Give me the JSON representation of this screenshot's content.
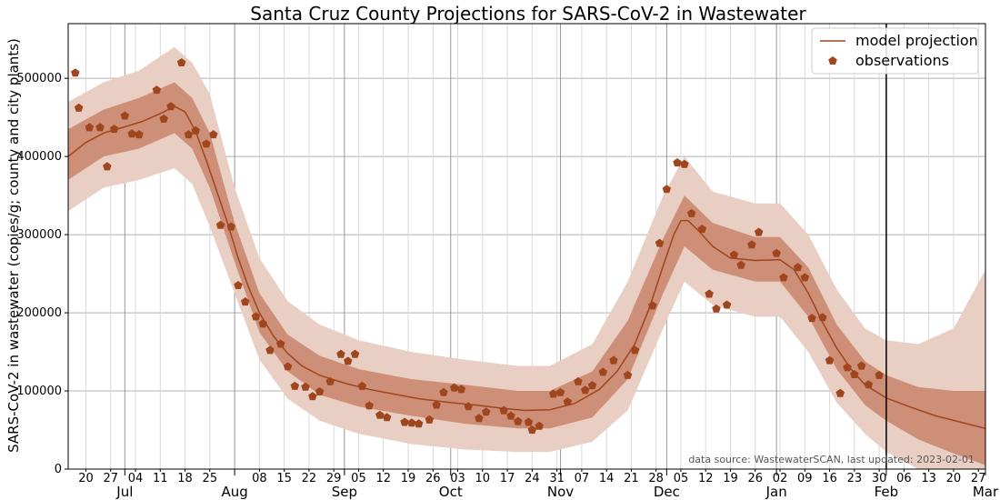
{
  "chart_data": {
    "type": "line",
    "title": "Santa Cruz County Projections for SARS-CoV-2 in Wastewater",
    "ylabel": "SARS-CoV-2 in wastewater (copies/g; county and city plants)",
    "xlabel": "",
    "ylim": [
      0,
      570000
    ],
    "xlim": [
      "2022-06-15",
      "2023-03-01"
    ],
    "grid": true,
    "legend_position": "top-right",
    "source_note": "data source: WastewaterSCAN, last updated: 2023-02-01",
    "last_updated_line": "2023-02-01",
    "colors": {
      "line": "#a0461e",
      "marker": "#a0461e",
      "band_inner": "#c8846a",
      "band_outer": "#e9cfc3",
      "grid": "#b0b0b0"
    },
    "y_ticks": [
      {
        "value": 0,
        "label": "0"
      },
      {
        "value": 100000,
        "label": "100000"
      },
      {
        "value": 200000,
        "label": "200000"
      },
      {
        "value": 300000,
        "label": "300000"
      },
      {
        "value": 400000,
        "label": "400000"
      },
      {
        "value": 500000,
        "label": "500000"
      }
    ],
    "month_ticks": [
      {
        "date": "2022-07-01",
        "label": "Jul"
      },
      {
        "date": "2022-08-01",
        "label": "Aug"
      },
      {
        "date": "2022-09-01",
        "label": "Sep"
      },
      {
        "date": "2022-10-01",
        "label": "Oct"
      },
      {
        "date": "2022-11-01",
        "label": "Nov"
      },
      {
        "date": "2022-12-01",
        "label": "Dec"
      },
      {
        "date": "2023-01-01",
        "label": "Jan"
      },
      {
        "date": "2023-02-01",
        "label": "Feb"
      },
      {
        "date": "2023-03-01",
        "label": "Mar"
      }
    ],
    "week_ticks": [
      {
        "date": "2022-06-20",
        "label": "20"
      },
      {
        "date": "2022-06-27",
        "label": "27"
      },
      {
        "date": "2022-07-04",
        "label": "04"
      },
      {
        "date": "2022-07-11",
        "label": "11"
      },
      {
        "date": "2022-07-18",
        "label": "18"
      },
      {
        "date": "2022-07-25",
        "label": "25"
      },
      {
        "date": "2022-08-08",
        "label": "08"
      },
      {
        "date": "2022-08-15",
        "label": "15"
      },
      {
        "date": "2022-08-22",
        "label": "22"
      },
      {
        "date": "2022-08-29",
        "label": "29"
      },
      {
        "date": "2022-09-05",
        "label": "05"
      },
      {
        "date": "2022-09-12",
        "label": "12"
      },
      {
        "date": "2022-09-19",
        "label": "19"
      },
      {
        "date": "2022-09-26",
        "label": "26"
      },
      {
        "date": "2022-10-03",
        "label": "03"
      },
      {
        "date": "2022-10-10",
        "label": "10"
      },
      {
        "date": "2022-10-17",
        "label": "17"
      },
      {
        "date": "2022-10-24",
        "label": "24"
      },
      {
        "date": "2022-10-31",
        "label": "31"
      },
      {
        "date": "2022-11-07",
        "label": "07"
      },
      {
        "date": "2022-11-14",
        "label": "14"
      },
      {
        "date": "2022-11-21",
        "label": "21"
      },
      {
        "date": "2022-11-28",
        "label": "28"
      },
      {
        "date": "2022-12-05",
        "label": "05"
      },
      {
        "date": "2022-12-12",
        "label": "12"
      },
      {
        "date": "2022-12-19",
        "label": "19"
      },
      {
        "date": "2022-12-26",
        "label": "26"
      },
      {
        "date": "2023-01-02",
        "label": "02"
      },
      {
        "date": "2023-01-09",
        "label": "09"
      },
      {
        "date": "2023-01-16",
        "label": "16"
      },
      {
        "date": "2023-01-23",
        "label": "23"
      },
      {
        "date": "2023-01-30",
        "label": "30"
      },
      {
        "date": "2023-02-06",
        "label": "06"
      },
      {
        "date": "2023-02-13",
        "label": "13"
      },
      {
        "date": "2023-02-20",
        "label": "20"
      },
      {
        "date": "2023-02-27",
        "label": "27"
      }
    ],
    "series": [
      {
        "name": "model projection",
        "style": "line",
        "points": [
          [
            "2022-06-15",
            400000
          ],
          [
            "2022-06-20",
            418000
          ],
          [
            "2022-06-25",
            430000
          ],
          [
            "2022-07-01",
            438000
          ],
          [
            "2022-07-06",
            445000
          ],
          [
            "2022-07-11",
            455000
          ],
          [
            "2022-07-15",
            464000
          ],
          [
            "2022-07-18",
            457000
          ],
          [
            "2022-07-21",
            432000
          ],
          [
            "2022-07-24",
            395000
          ],
          [
            "2022-07-27",
            355000
          ],
          [
            "2022-07-30",
            315000
          ],
          [
            "2022-08-02",
            270000
          ],
          [
            "2022-08-05",
            232000
          ],
          [
            "2022-08-08",
            200000
          ],
          [
            "2022-08-12",
            170000
          ],
          [
            "2022-08-16",
            148000
          ],
          [
            "2022-08-20",
            132000
          ],
          [
            "2022-08-25",
            120000
          ],
          [
            "2022-09-01",
            110000
          ],
          [
            "2022-09-08",
            102000
          ],
          [
            "2022-09-15",
            96000
          ],
          [
            "2022-09-22",
            90000
          ],
          [
            "2022-10-01",
            85000
          ],
          [
            "2022-10-08",
            82000
          ],
          [
            "2022-10-15",
            78000
          ],
          [
            "2022-10-22",
            75000
          ],
          [
            "2022-10-29",
            76000
          ],
          [
            "2022-11-05",
            84000
          ],
          [
            "2022-11-12",
            102000
          ],
          [
            "2022-11-17",
            125000
          ],
          [
            "2022-11-22",
            160000
          ],
          [
            "2022-11-26",
            205000
          ],
          [
            "2022-11-30",
            260000
          ],
          [
            "2022-12-03",
            300000
          ],
          [
            "2022-12-05",
            318000
          ],
          [
            "2022-12-07",
            318000
          ],
          [
            "2022-12-10",
            305000
          ],
          [
            "2022-12-14",
            285000
          ],
          [
            "2022-12-19",
            270000
          ],
          [
            "2022-12-26",
            267000
          ],
          [
            "2023-01-02",
            268000
          ],
          [
            "2023-01-06",
            255000
          ],
          [
            "2023-01-10",
            225000
          ],
          [
            "2023-01-14",
            188000
          ],
          [
            "2023-01-18",
            155000
          ],
          [
            "2023-01-22",
            128000
          ],
          [
            "2023-01-26",
            108000
          ],
          [
            "2023-02-01",
            91000
          ],
          [
            "2023-02-08",
            79000
          ],
          [
            "2023-02-15",
            68000
          ],
          [
            "2023-02-22",
            60000
          ],
          [
            "2023-03-01",
            52000
          ]
        ],
        "inner_band": [
          [
            "2022-06-15",
            370000,
            435000
          ],
          [
            "2022-06-25",
            400000,
            460000
          ],
          [
            "2022-07-05",
            410000,
            475000
          ],
          [
            "2022-07-15",
            430000,
            495000
          ],
          [
            "2022-07-20",
            410000,
            475000
          ],
          [
            "2022-07-25",
            360000,
            430000
          ],
          [
            "2022-08-01",
            265000,
            315000
          ],
          [
            "2022-08-08",
            175000,
            225000
          ],
          [
            "2022-08-16",
            125000,
            172000
          ],
          [
            "2022-08-25",
            95000,
            145000
          ],
          [
            "2022-09-05",
            80000,
            128000
          ],
          [
            "2022-09-20",
            68000,
            115000
          ],
          [
            "2022-10-05",
            58000,
            108000
          ],
          [
            "2022-10-20",
            52000,
            100000
          ],
          [
            "2022-10-29",
            52000,
            100000
          ],
          [
            "2022-11-10",
            66000,
            125000
          ],
          [
            "2022-11-20",
            115000,
            190000
          ],
          [
            "2022-11-30",
            225000,
            295000
          ],
          [
            "2022-12-06",
            285000,
            350000
          ],
          [
            "2022-12-14",
            255000,
            315000
          ],
          [
            "2022-12-26",
            240000,
            297000
          ],
          [
            "2023-01-02",
            240000,
            297000
          ],
          [
            "2023-01-10",
            195000,
            258000
          ],
          [
            "2023-01-18",
            128000,
            185000
          ],
          [
            "2023-01-26",
            82000,
            138000
          ],
          [
            "2023-02-01",
            62000,
            120000
          ],
          [
            "2023-02-10",
            38000,
            105000
          ],
          [
            "2023-02-20",
            20000,
            100000
          ],
          [
            "2023-03-01",
            5000,
            100000
          ]
        ],
        "outer_band": [
          [
            "2022-06-15",
            330000,
            470000
          ],
          [
            "2022-06-25",
            360000,
            495000
          ],
          [
            "2022-07-05",
            370000,
            510000
          ],
          [
            "2022-07-15",
            385000,
            540000
          ],
          [
            "2022-07-20",
            365000,
            520000
          ],
          [
            "2022-07-25",
            310000,
            480000
          ],
          [
            "2022-08-01",
            225000,
            360000
          ],
          [
            "2022-08-08",
            140000,
            270000
          ],
          [
            "2022-08-16",
            90000,
            215000
          ],
          [
            "2022-08-25",
            62000,
            185000
          ],
          [
            "2022-09-05",
            45000,
            165000
          ],
          [
            "2022-09-20",
            32000,
            150000
          ],
          [
            "2022-10-05",
            25000,
            140000
          ],
          [
            "2022-10-20",
            22000,
            132000
          ],
          [
            "2022-10-29",
            22000,
            132000
          ],
          [
            "2022-11-10",
            35000,
            160000
          ],
          [
            "2022-11-20",
            75000,
            240000
          ],
          [
            "2022-11-30",
            180000,
            350000
          ],
          [
            "2022-12-06",
            240000,
            400000
          ],
          [
            "2022-12-14",
            210000,
            355000
          ],
          [
            "2022-12-26",
            195000,
            340000
          ],
          [
            "2023-01-02",
            195000,
            340000
          ],
          [
            "2023-01-10",
            150000,
            300000
          ],
          [
            "2023-01-18",
            85000,
            230000
          ],
          [
            "2023-01-26",
            45000,
            180000
          ],
          [
            "2023-02-01",
            22000,
            165000
          ],
          [
            "2023-02-10",
            0,
            160000
          ],
          [
            "2023-02-20",
            0,
            180000
          ],
          [
            "2023-03-01",
            0,
            255000
          ]
        ]
      },
      {
        "name": "observations",
        "style": "scatter",
        "marker": "pentagon",
        "points": [
          [
            "2022-06-17",
            507000
          ],
          [
            "2022-06-18",
            462000
          ],
          [
            "2022-06-21",
            437000
          ],
          [
            "2022-06-24",
            437000
          ],
          [
            "2022-06-26",
            387000
          ],
          [
            "2022-06-28",
            435000
          ],
          [
            "2022-07-01",
            452000
          ],
          [
            "2022-07-03",
            429000
          ],
          [
            "2022-07-05",
            428000
          ],
          [
            "2022-07-10",
            485000
          ],
          [
            "2022-07-12",
            448000
          ],
          [
            "2022-07-14",
            464000
          ],
          [
            "2022-07-17",
            520000
          ],
          [
            "2022-07-19",
            428000
          ],
          [
            "2022-07-21",
            433000
          ],
          [
            "2022-07-24",
            416000
          ],
          [
            "2022-07-26",
            428000
          ],
          [
            "2022-07-28",
            312000
          ],
          [
            "2022-07-31",
            310000
          ],
          [
            "2022-08-02",
            235000
          ],
          [
            "2022-08-04",
            214000
          ],
          [
            "2022-08-07",
            195000
          ],
          [
            "2022-08-09",
            186000
          ],
          [
            "2022-08-11",
            152000
          ],
          [
            "2022-08-14",
            160000
          ],
          [
            "2022-08-16",
            131000
          ],
          [
            "2022-08-18",
            106000
          ],
          [
            "2022-08-21",
            105000
          ],
          [
            "2022-08-23",
            93000
          ],
          [
            "2022-08-25",
            99000
          ],
          [
            "2022-08-28",
            112000
          ],
          [
            "2022-08-31",
            147000
          ],
          [
            "2022-09-02",
            138000
          ],
          [
            "2022-09-04",
            147000
          ],
          [
            "2022-09-06",
            106000
          ],
          [
            "2022-09-08",
            81000
          ],
          [
            "2022-09-11",
            69000
          ],
          [
            "2022-09-13",
            66000
          ],
          [
            "2022-09-18",
            60000
          ],
          [
            "2022-09-20",
            59000
          ],
          [
            "2022-09-22",
            58000
          ],
          [
            "2022-09-25",
            63000
          ],
          [
            "2022-09-27",
            82000
          ],
          [
            "2022-09-29",
            98000
          ],
          [
            "2022-10-02",
            104000
          ],
          [
            "2022-10-04",
            102000
          ],
          [
            "2022-10-06",
            80000
          ],
          [
            "2022-10-09",
            65000
          ],
          [
            "2022-10-11",
            73000
          ],
          [
            "2022-10-16",
            75000
          ],
          [
            "2022-10-18",
            68000
          ],
          [
            "2022-10-20",
            61000
          ],
          [
            "2022-10-23",
            60000
          ],
          [
            "2022-10-24",
            50000
          ],
          [
            "2022-10-26",
            55000
          ],
          [
            "2022-10-30",
            96000
          ],
          [
            "2022-11-01",
            98000
          ],
          [
            "2022-11-03",
            86000
          ],
          [
            "2022-11-06",
            112000
          ],
          [
            "2022-11-08",
            101000
          ],
          [
            "2022-11-10",
            107000
          ],
          [
            "2022-11-13",
            124000
          ],
          [
            "2022-11-16",
            139000
          ],
          [
            "2022-11-20",
            120000
          ],
          [
            "2022-11-22",
            152000
          ],
          [
            "2022-11-27",
            209000
          ],
          [
            "2022-11-29",
            289000
          ],
          [
            "2022-12-01",
            358000
          ],
          [
            "2022-12-04",
            392000
          ],
          [
            "2022-12-06",
            390000
          ],
          [
            "2022-12-08",
            327000
          ],
          [
            "2022-12-11",
            307000
          ],
          [
            "2022-12-13",
            224000
          ],
          [
            "2022-12-15",
            205000
          ],
          [
            "2022-12-18",
            210000
          ],
          [
            "2022-12-20",
            274000
          ],
          [
            "2022-12-22",
            261000
          ],
          [
            "2022-12-25",
            287000
          ],
          [
            "2022-12-27",
            303000
          ],
          [
            "2023-01-01",
            276000
          ],
          [
            "2023-01-03",
            245000
          ],
          [
            "2023-01-07",
            258000
          ],
          [
            "2023-01-09",
            245000
          ],
          [
            "2023-01-11",
            193000
          ],
          [
            "2023-01-14",
            194000
          ],
          [
            "2023-01-16",
            139000
          ],
          [
            "2023-01-19",
            97000
          ],
          [
            "2023-01-21",
            130000
          ],
          [
            "2023-01-23",
            121000
          ],
          [
            "2023-01-25",
            132000
          ],
          [
            "2023-01-27",
            108000
          ],
          [
            "2023-01-30",
            120000
          ]
        ]
      }
    ]
  }
}
